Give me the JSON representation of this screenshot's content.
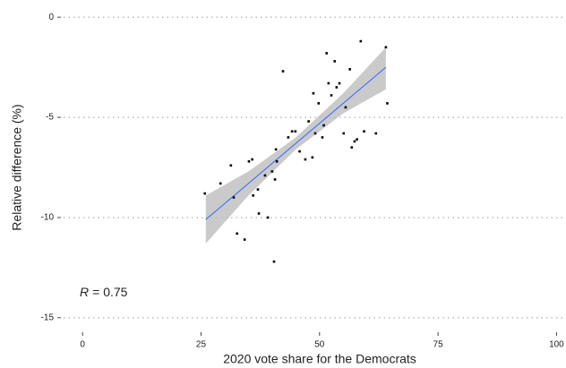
{
  "chart_data": {
    "type": "scatter",
    "x_label": "2020 vote share for the Democrats",
    "y_label": "Relative difference (%)",
    "annotation_symbol": "R",
    "annotation_text": "= 0.75",
    "xlim": [
      -4,
      102
    ],
    "ylim": [
      -15.5,
      0.5
    ],
    "xticks": [
      0,
      25,
      50,
      75,
      100
    ],
    "yticks": [
      0,
      -5,
      -10,
      -15
    ],
    "grid": true,
    "series": [
      {
        "color": "#000000",
        "x": [
          25.8,
          29.1,
          31.3,
          31.9,
          32.6,
          34.2,
          35.1,
          35.8,
          36.0,
          37.0,
          37.2,
          38.5,
          39.1,
          40.0,
          40.6,
          40.4,
          40.8,
          41.0,
          42.3,
          43.4,
          44.2,
          44.9,
          45.8,
          47.0,
          47.7,
          48.5,
          48.7,
          49.1,
          49.8,
          50.6,
          50.9,
          51.5,
          51.9,
          52.5,
          53.2,
          53.6,
          54.2,
          55.1,
          55.5,
          56.4,
          56.8,
          57.4,
          57.9,
          58.7,
          59.4,
          61.9,
          64.0,
          64.3
        ],
        "values": [
          -8.8,
          -8.3,
          -7.4,
          -9.0,
          -10.8,
          -11.1,
          -7.2,
          -7.1,
          -8.9,
          -8.6,
          -9.8,
          -7.9,
          -10.0,
          -7.7,
          -8.1,
          -12.2,
          -6.6,
          -7.2,
          -2.7,
          -6.0,
          -5.7,
          -5.7,
          -6.7,
          -7.1,
          -5.2,
          -7.0,
          -3.8,
          -5.8,
          -4.3,
          -6.0,
          -5.4,
          -1.8,
          -3.3,
          -3.9,
          -2.2,
          -3.5,
          -3.3,
          -5.8,
          -4.5,
          -2.6,
          -6.5,
          -6.2,
          -6.1,
          -1.2,
          -5.7,
          -5.8,
          -1.5,
          -4.3
        ]
      }
    ],
    "fit": {
      "color": "#3366ff",
      "band_color": "#bdbdbd",
      "x": [
        26,
        35,
        45,
        55,
        64
      ],
      "values": [
        -10.1,
        -8.3,
        -6.3,
        -4.3,
        -2.5
      ],
      "lower": [
        -11.3,
        -8.9,
        -6.6,
        -4.8,
        -3.6
      ],
      "upper": [
        -8.9,
        -7.7,
        -6.0,
        -3.8,
        -1.5
      ]
    }
  }
}
